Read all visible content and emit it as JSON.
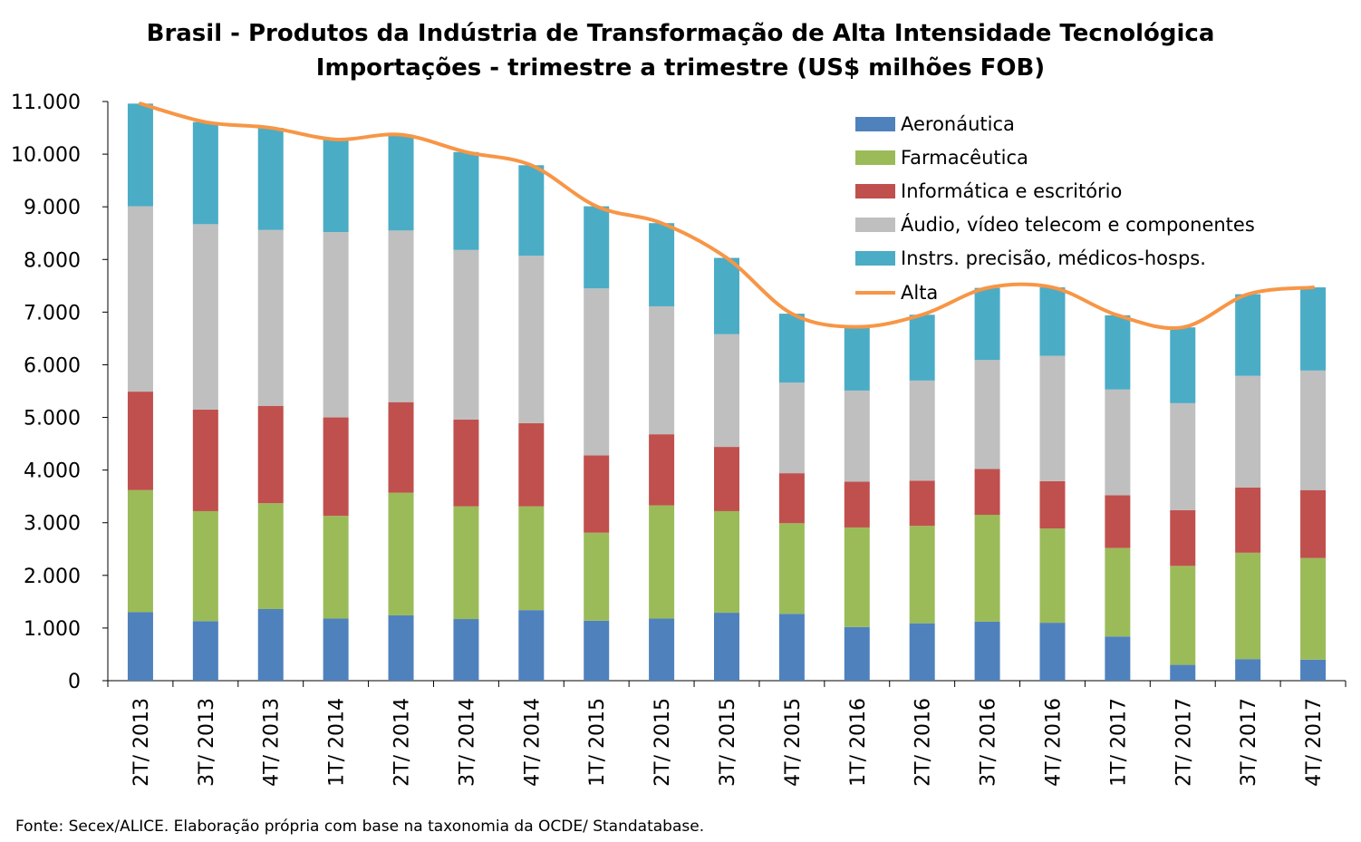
{
  "chart_data": {
    "type": "bar",
    "stacked": true,
    "title": "Brasil - Produtos da Indústria de Transformação de Alta Intensidade Tecnológica",
    "subtitle": "Importações - trimestre a trimestre (US$ milhões FOB)",
    "source": "Fonte: Secex/ALICE. Elaboração própria com base na taxonomia da OCDE/ Standatabase.",
    "xlabel": "",
    "ylabel": "",
    "ylim": [
      0,
      11000
    ],
    "yticks": [
      0,
      1000,
      2000,
      3000,
      4000,
      5000,
      6000,
      7000,
      8000,
      9000,
      10000,
      11000
    ],
    "ytick_labels": [
      "0",
      "1.000",
      "2.000",
      "3.000",
      "4.000",
      "5.000",
      "6.000",
      "7.000",
      "8.000",
      "9.000",
      "10.000",
      "11.000"
    ],
    "grid": false,
    "legend_position": "top-right",
    "categories": [
      "2T/ 2013",
      "3T/ 2013",
      "4T/ 2013",
      "1T/ 2014",
      "2T/ 2014",
      "3T/ 2014",
      "4T/ 2014",
      "1T/ 2015",
      "2T/ 2015",
      "3T/ 2015",
      "4T/ 2015",
      "1T/ 2016",
      "2T/ 2016",
      "3T/ 2016",
      "4T/ 2016",
      "1T/ 2017",
      "2T/ 2017",
      "3T/ 2017",
      "4T/ 2017"
    ],
    "series": [
      {
        "name": "Aeronáutica",
        "color": "#4f81bd",
        "values": [
          1300,
          1130,
          1360,
          1180,
          1240,
          1170,
          1340,
          1140,
          1180,
          1290,
          1270,
          1020,
          1090,
          1120,
          1100,
          840,
          300,
          410,
          400
        ]
      },
      {
        "name": "Farmacêutica",
        "color": "#9bbb59",
        "values": [
          2320,
          2090,
          2010,
          1950,
          2330,
          2140,
          1970,
          1670,
          2150,
          1930,
          1720,
          1890,
          1850,
          2030,
          1790,
          1680,
          1880,
          2020,
          1930
        ]
      },
      {
        "name": "Informática e escritório",
        "color": "#c0504d",
        "values": [
          1870,
          1930,
          1850,
          1870,
          1720,
          1650,
          1580,
          1470,
          1350,
          1220,
          950,
          870,
          860,
          870,
          900,
          1000,
          1060,
          1240,
          1290
        ]
      },
      {
        "name": "Áudio, vídeo telecom e componentes",
        "color": "#bfbfbf",
        "values": [
          3520,
          3520,
          3340,
          3520,
          3260,
          3220,
          3180,
          3170,
          2430,
          2140,
          1720,
          1730,
          1900,
          2070,
          2380,
          2010,
          2030,
          2120,
          2270
        ]
      },
      {
        "name": "Instrs. precisão, médicos-hosps.",
        "color": "#4bacc6",
        "values": [
          1950,
          1940,
          1940,
          1760,
          1820,
          1860,
          1720,
          1560,
          1580,
          1450,
          1310,
          1210,
          1250,
          1370,
          1300,
          1410,
          1440,
          1550,
          1580
        ]
      }
    ],
    "line": {
      "name": "Alta",
      "color": "#f79646",
      "values": [
        10960,
        10610,
        10500,
        10280,
        10370,
        10040,
        9790,
        9010,
        8690,
        8030,
        6970,
        6720,
        6950,
        7460,
        7470,
        6940,
        6710,
        7340,
        7470
      ]
    }
  }
}
